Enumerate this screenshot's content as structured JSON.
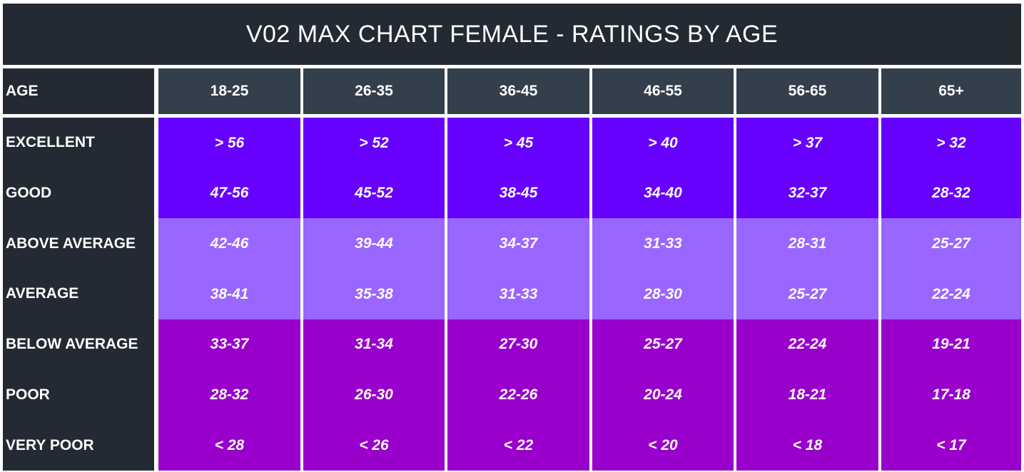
{
  "title": "V02 MAX CHART FEMALE - RATINGS BY AGE",
  "colors": {
    "dark": "#232a33",
    "header": "#343f4c",
    "excellent_good": "#6600ff",
    "average_band": "#9966ff",
    "poor_band": "#9900cc"
  },
  "chart_data": {
    "type": "table",
    "title": "V02 MAX CHART FEMALE - RATINGS BY AGE",
    "row_header_label": "AGE",
    "columns": [
      "18-25",
      "26-35",
      "36-45",
      "46-55",
      "56-65",
      "65+"
    ],
    "rows": [
      {
        "rating": "EXCELLENT",
        "band": "excellent_good",
        "values": [
          "> 56",
          "> 52",
          "> 45",
          "> 40",
          "> 37",
          "> 32"
        ]
      },
      {
        "rating": "GOOD",
        "band": "excellent_good",
        "values": [
          "47-56",
          "45-52",
          "38-45",
          "34-40",
          "32-37",
          "28-32"
        ]
      },
      {
        "rating": "ABOVE AVERAGE",
        "band": "average_band",
        "values": [
          "42-46",
          "39-44",
          "34-37",
          "31-33",
          "28-31",
          "25-27"
        ]
      },
      {
        "rating": "AVERAGE",
        "band": "average_band",
        "values": [
          "38-41",
          "35-38",
          "31-33",
          "28-30",
          "25-27",
          "22-24"
        ]
      },
      {
        "rating": "BELOW AVERAGE",
        "band": "poor_band",
        "values": [
          "33-37",
          "31-34",
          "27-30",
          "25-27",
          "22-24",
          "19-21"
        ]
      },
      {
        "rating": "POOR",
        "band": "poor_band",
        "values": [
          "28-32",
          "26-30",
          "22-26",
          "20-24",
          "18-21",
          "17-18"
        ]
      },
      {
        "rating": "VERY POOR",
        "band": "poor_band",
        "values": [
          "< 28",
          "< 26",
          "< 22",
          "< 20",
          "< 18",
          "< 17"
        ]
      }
    ]
  }
}
